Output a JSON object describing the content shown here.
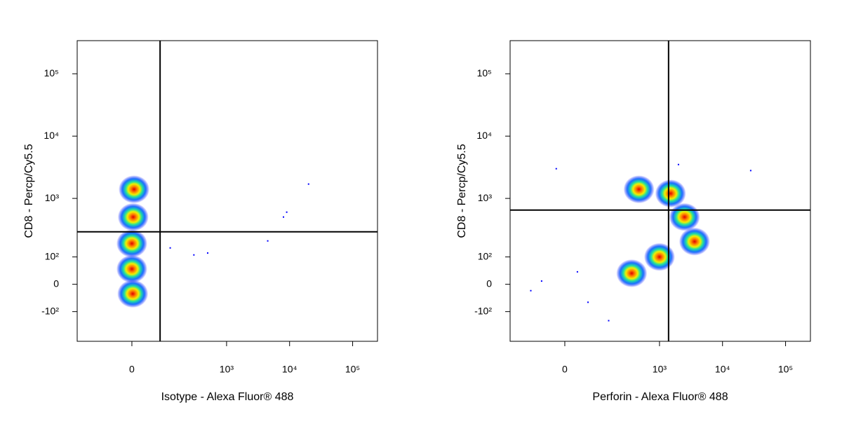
{
  "chart_data": [
    {
      "type": "scatter",
      "scale": "biexponential",
      "xlabel": "Isotype - Alexa Fluor® 488",
      "ylabel": "CD8 - Percp/Cy5.5",
      "xlim": [
        -228,
        248000
      ],
      "ylim": [
        -340,
        340000
      ],
      "xticks": [
        0,
        {
          "value": 1000,
          "label": "10³"
        },
        {
          "value": 10000,
          "label": "10⁴"
        },
        {
          "value": 100000,
          "label": "10⁵"
        }
      ],
      "yticks": [
        {
          "value": -100,
          "label": "-10²"
        },
        0,
        {
          "value": 100,
          "label": "10²"
        },
        {
          "value": 1000,
          "label": "10³"
        },
        {
          "value": 10000,
          "label": "10⁴"
        },
        {
          "value": 100000,
          "label": "10⁵"
        }
      ],
      "gate": {
        "x": 77,
        "y": 286
      },
      "populations": {
        "x": [
          5,
          3,
          0,
          0,
          2
        ],
        "y": [
          1400,
          500,
          180,
          50,
          -30
        ]
      },
      "points": {
        "x": [
          9000,
          20000,
          4500,
          500,
          300,
          120,
          8000
        ],
        "y": [
          600,
          1700,
          200,
          120,
          110,
          150,
          500
        ]
      }
    },
    {
      "type": "scatter",
      "scale": "biexponential",
      "xlabel": "Perforin - Alexa Fluor® 488",
      "ylabel": "CD8 - Percp/Cy5.5",
      "xlim": [
        -228,
        248000
      ],
      "ylim": [
        -340,
        340000
      ],
      "xticks": [
        0,
        {
          "value": 1000,
          "label": "10³"
        },
        {
          "value": 10000,
          "label": "10⁴"
        },
        {
          "value": 100000,
          "label": "10⁵"
        }
      ],
      "yticks": [
        {
          "value": -100,
          "label": "-10²"
        },
        0,
        {
          "value": 100,
          "label": "10²"
        },
        {
          "value": 1000,
          "label": "10³"
        },
        {
          "value": 10000,
          "label": "10⁴"
        },
        {
          "value": 100000,
          "label": "10⁵"
        }
      ],
      "gate": {
        "x": 1393,
        "y": 649
      },
      "populations": {
        "x": [
          470,
          1500,
          360,
          1000,
          3600,
          2500
        ],
        "y": [
          1400,
          1200,
          35,
          100,
          195,
          500
        ]
      },
      "points": {
        "x": [
          -100,
          -60,
          30,
          60,
          -20,
          28000,
          2000,
          150
        ],
        "y": [
          -20,
          10,
          40,
          -60,
          3000,
          2800,
          3500,
          -150
        ]
      }
    }
  ]
}
